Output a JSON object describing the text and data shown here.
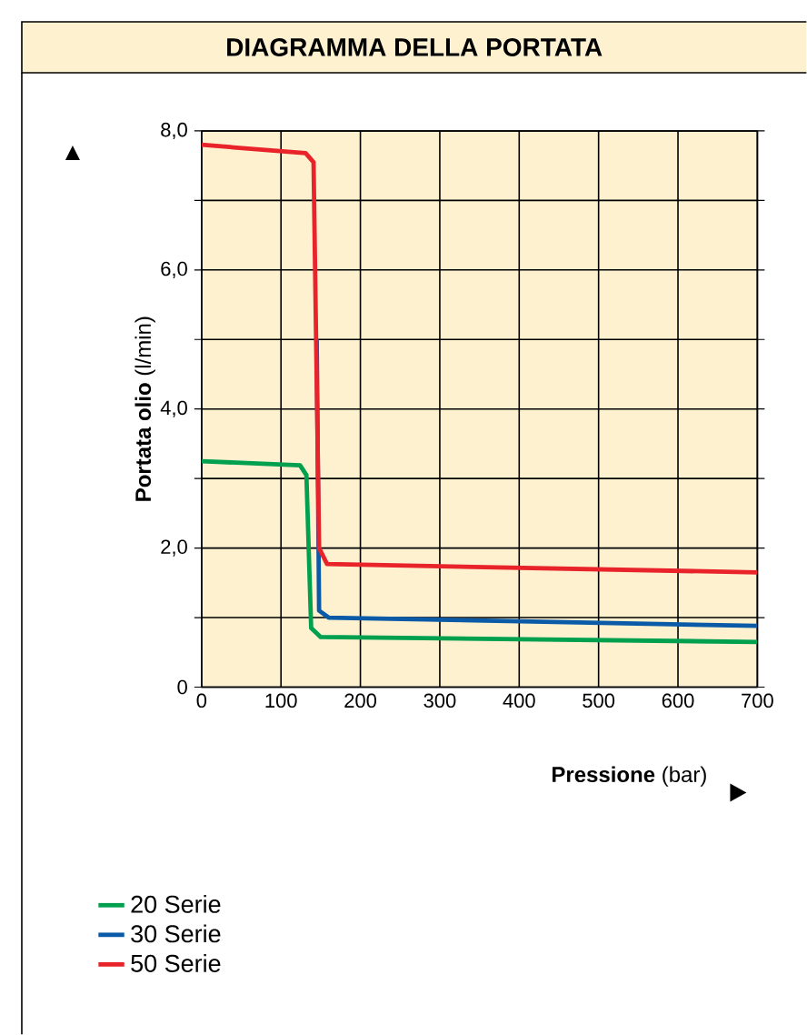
{
  "chart_data": {
    "type": "line",
    "title": "DIAGRAMMA DELLA PORTATA",
    "xlabel": "**Pressione** (bar)",
    "ylabel": "**Portata olio** (l/min)",
    "series": [
      {
        "name": "20 Serie",
        "color": "#00a04f",
        "x": [
          0,
          124,
          132,
          138,
          150,
          700
        ],
        "values": [
          3.25,
          3.19,
          3.05,
          0.85,
          0.72,
          0.65
        ]
      },
      {
        "name": "30 Serie",
        "color": "#0a5aa8",
        "x": [
          145,
          148,
          160,
          700
        ],
        "values": [
          5.0,
          1.1,
          1.0,
          0.88
        ]
      },
      {
        "name": "50 Serie",
        "color": "#e8232a",
        "x": [
          0,
          131,
          141,
          148,
          158,
          700
        ],
        "values": [
          7.8,
          7.68,
          7.55,
          2.0,
          1.77,
          1.65
        ]
      }
    ],
    "xlim": [
      0,
      700
    ],
    "xticks": [
      0,
      100,
      200,
      300,
      400,
      500,
      600,
      700
    ],
    "ylim": [
      0,
      8
    ],
    "yticks": [
      {
        "value": 0,
        "label": "0"
      },
      {
        "value": 1,
        "label": null
      },
      {
        "value": 2,
        "label": "2,0"
      },
      {
        "value": 3,
        "label": null
      },
      {
        "value": 4,
        "label": "4,0"
      },
      {
        "value": 5,
        "label": null
      },
      {
        "value": 6,
        "label": "6,0"
      },
      {
        "value": 7,
        "label": null
      },
      {
        "value": 8,
        "label": "8,0"
      }
    ],
    "grid": true,
    "legend": "bottom left",
    "marker": "none",
    "line_style": "solid"
  }
}
